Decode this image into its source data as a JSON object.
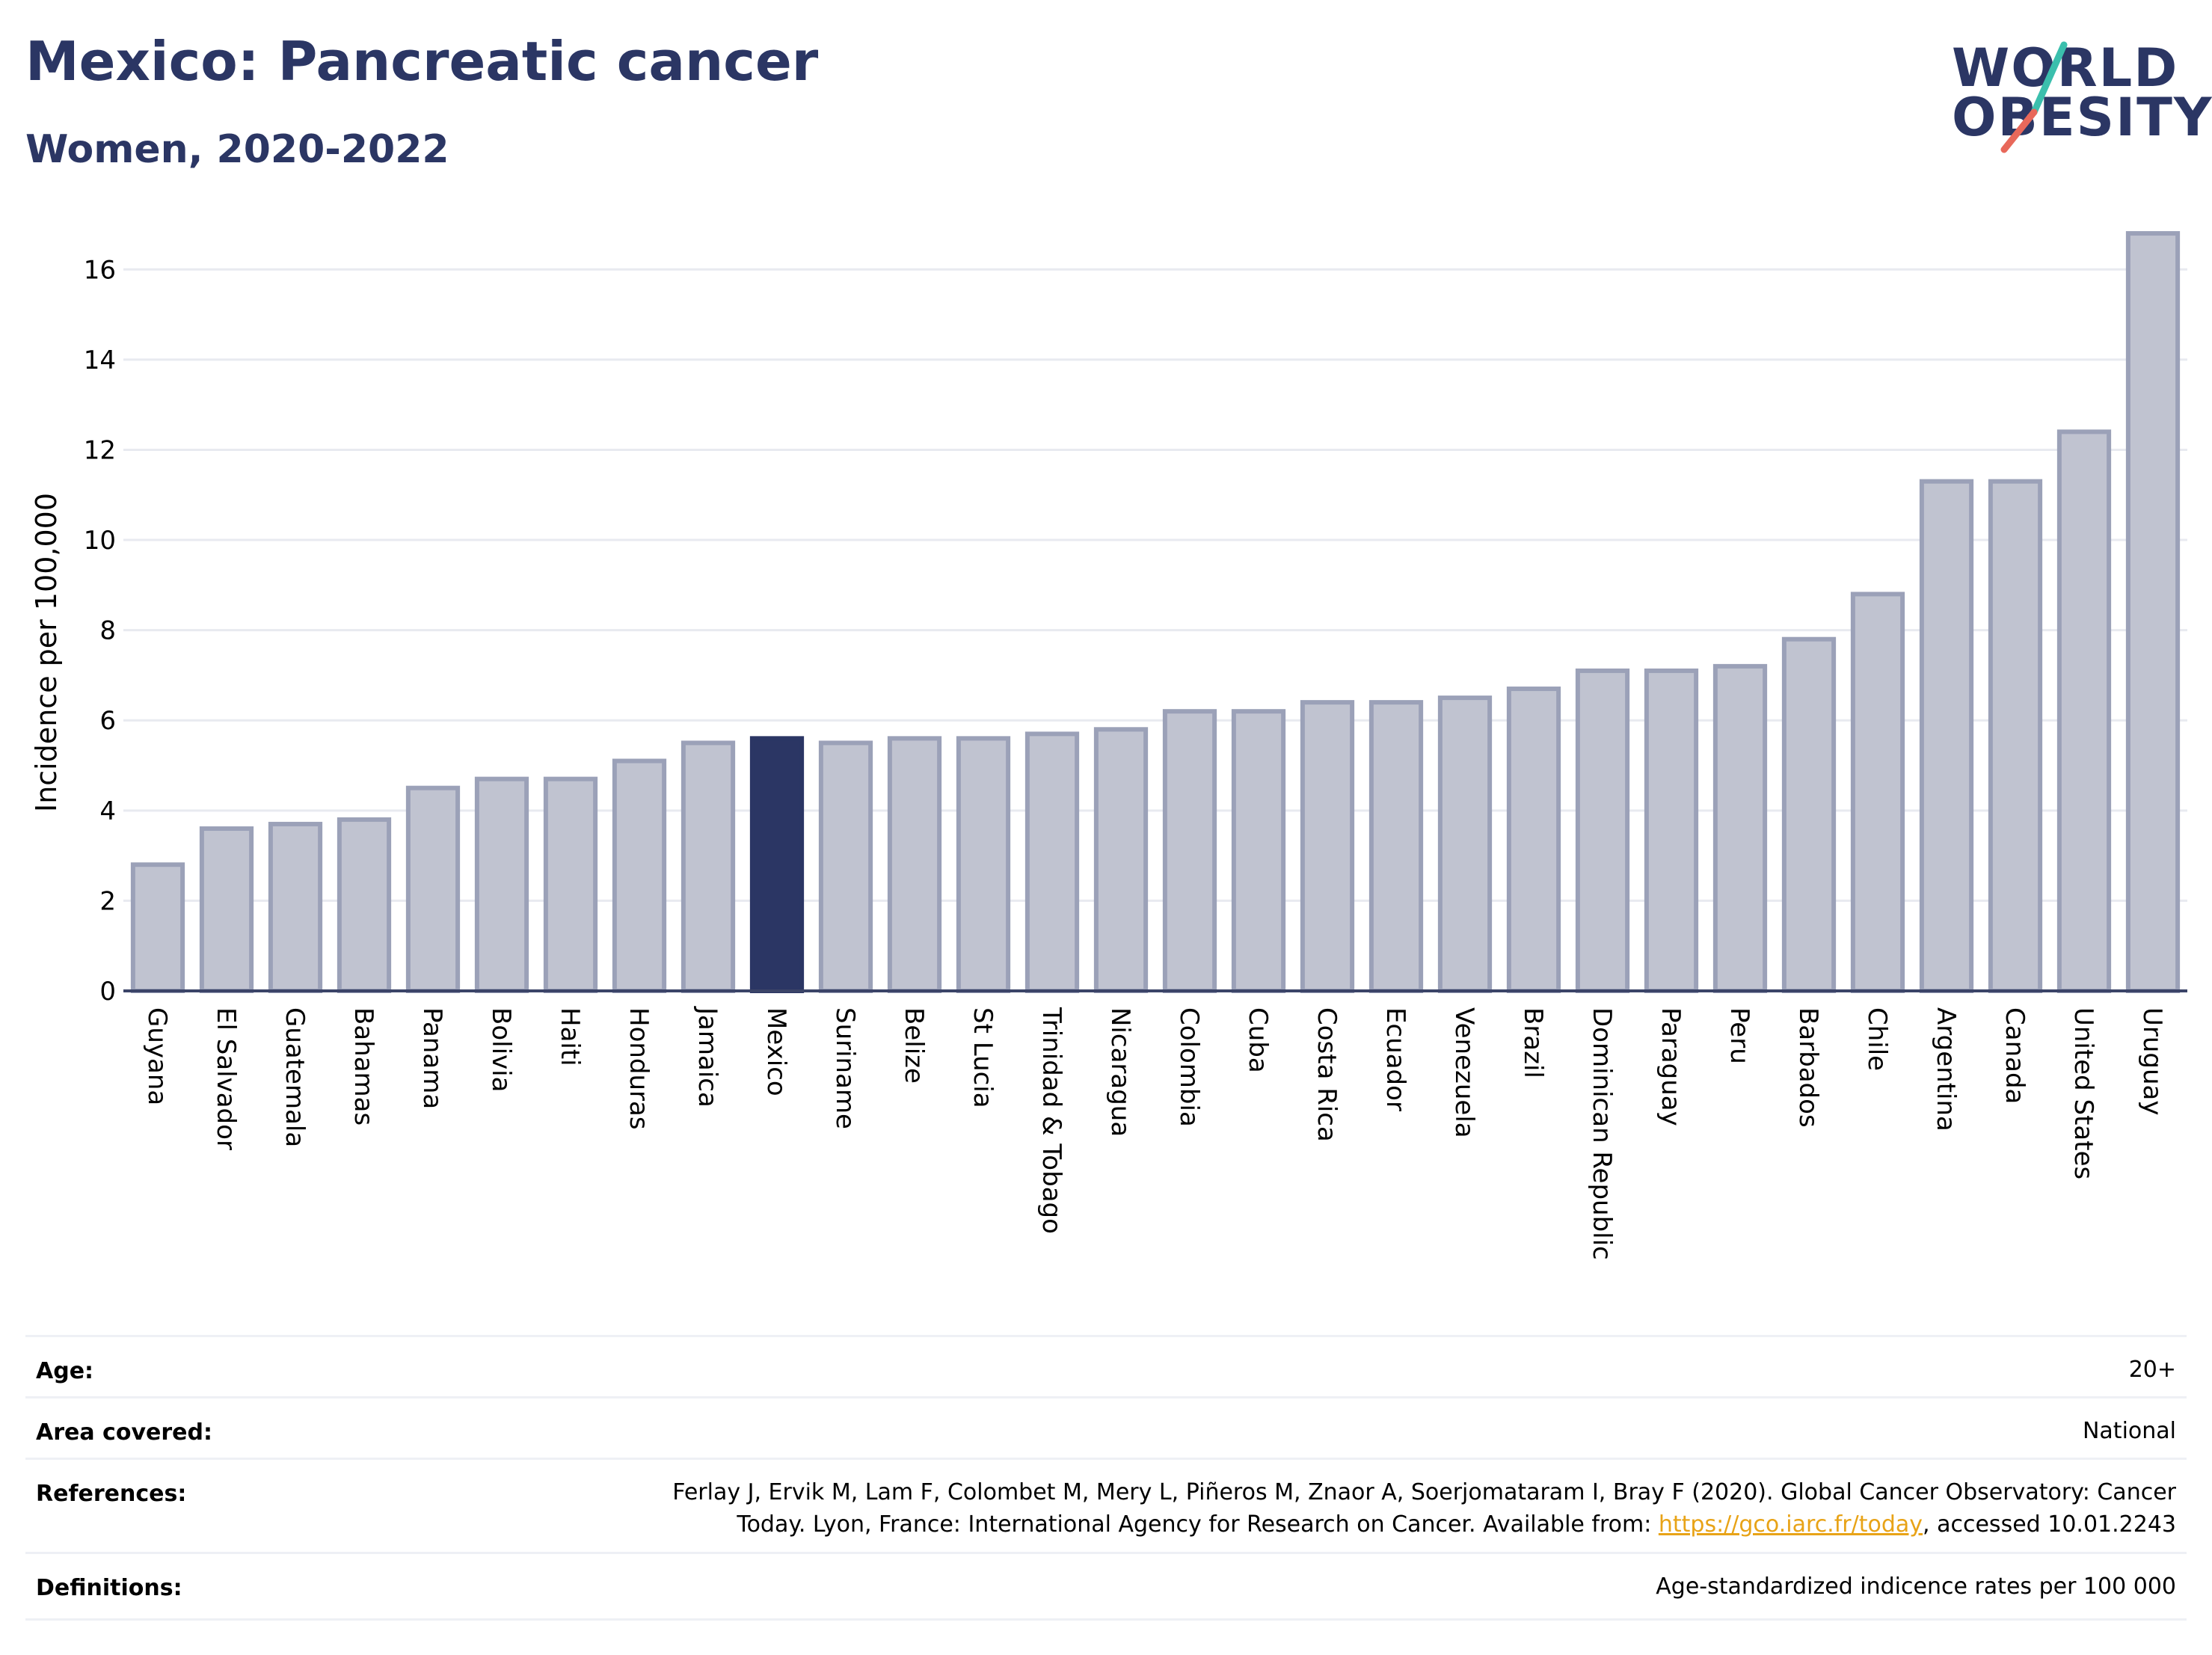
{
  "header": {
    "title": "Mexico: Pancreatic cancer",
    "subtitle": "Women, 2020-2022"
  },
  "logo": {
    "line1": "WORLD",
    "line2": "OBESITY",
    "colors": {
      "text": "#2b3664",
      "slash_top": "#3bbfad",
      "slash_bottom": "#e8685a"
    }
  },
  "chart_data": {
    "type": "bar",
    "ylabel": "Incidence per 100,000",
    "xlabel": "",
    "ylim": [
      0,
      17
    ],
    "yticks": [
      0,
      2,
      4,
      6,
      8,
      10,
      12,
      14,
      16
    ],
    "grid": true,
    "highlight": "Mexico",
    "colors": {
      "bar": "#c0c3d0",
      "bar_edge": "#9ba1b8",
      "highlight": "#2b3664"
    },
    "categories": [
      "Guyana",
      "El Salvador",
      "Guatemala",
      "Bahamas",
      "Panama",
      "Bolivia",
      "Haiti",
      "Honduras",
      "Jamaica",
      "Mexico",
      "Suriname",
      "Belize",
      "St Lucia",
      "Trinidad & Tobago",
      "Nicaragua",
      "Colombia",
      "Cuba",
      "Costa Rica",
      "Ecuador",
      "Venezuela",
      "Brazil",
      "Dominican Republic",
      "Paraguay",
      "Peru",
      "Barbados",
      "Chile",
      "Argentina",
      "Canada",
      "United States",
      "Uruguay"
    ],
    "values": [
      2.8,
      3.6,
      3.7,
      3.8,
      4.5,
      4.7,
      4.7,
      5.1,
      5.5,
      5.6,
      5.5,
      5.6,
      5.6,
      5.7,
      5.8,
      6.2,
      6.2,
      6.4,
      6.4,
      6.5,
      6.7,
      7.1,
      7.1,
      7.2,
      7.8,
      8.8,
      11.3,
      11.3,
      12.4,
      16.8
    ]
  },
  "meta": {
    "age": {
      "label": "Age:",
      "value": "20+"
    },
    "area": {
      "label": "Area covered:",
      "value": "National"
    },
    "references": {
      "label": "References:",
      "line1": "Ferlay J, Ervik M, Lam F, Colombet M, Mery L, Piñeros M, Znaor A, Soerjomataram I, Bray F (2020). Global Cancer Observatory: Cancer",
      "line2_before": "Today. Lyon, France: International Agency for Research on Cancer. Available from: ",
      "link": "https://gco.iarc.fr/today",
      "line2_after": ", accessed 10.01.2243"
    },
    "definitions": {
      "label": "Definitions:",
      "value": "Age-standardized indicence rates per 100 000"
    }
  }
}
